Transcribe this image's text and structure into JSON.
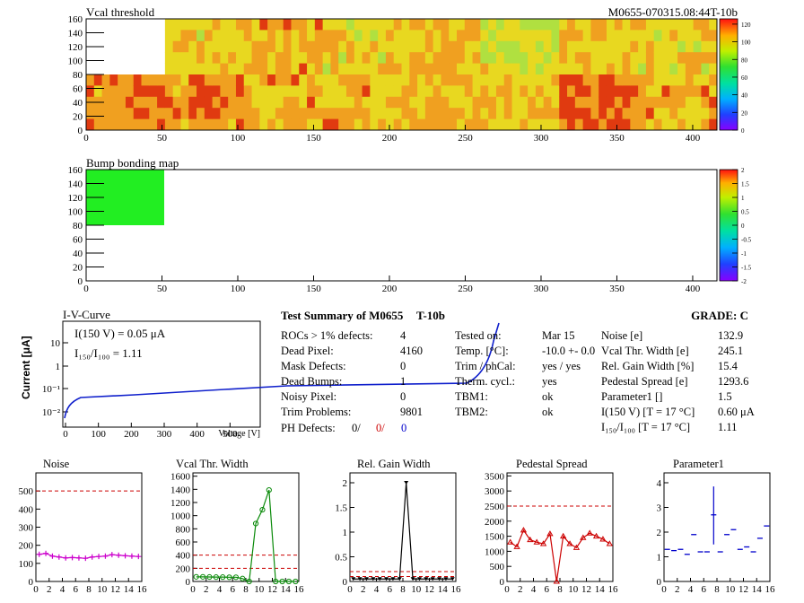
{
  "module_id": "M0655-070315.08:44T-10b",
  "vcal_map": {
    "title": "Vcal threshold",
    "x_ticks": [
      "0",
      "50",
      "100",
      "150",
      "200",
      "250",
      "300",
      "350",
      "400"
    ],
    "y_ticks": [
      "0",
      "20",
      "40",
      "60",
      "80",
      "100",
      "120",
      "140",
      "160"
    ],
    "scale_ticks": [
      "0",
      "20",
      "40",
      "60",
      "80",
      "100",
      "120"
    ],
    "colors": {
      "low": "#e8d820",
      "mid": "#f0a020",
      "high": "#e03a10",
      "cool": "#b0e040"
    }
  },
  "bump_map": {
    "title": "Bump bonding map",
    "x_ticks": [
      "0",
      "50",
      "100",
      "150",
      "200",
      "250",
      "300",
      "350",
      "400"
    ],
    "y_ticks": [
      "0",
      "20",
      "40",
      "60",
      "80",
      "100",
      "120",
      "140",
      "160"
    ],
    "scale_ticks": [
      "-2",
      "-1.5",
      "-1",
      "-0.5",
      "0",
      "0.5",
      "1",
      "1.5",
      "2"
    ],
    "colors": {
      "block": "#22ee22"
    }
  },
  "iv": {
    "title": "I-V-Curve",
    "ylabel": "Current [μA]",
    "xlabel": "Voltage [V]",
    "x_ticks": [
      "0",
      "100",
      "200",
      "300",
      "400",
      "500"
    ],
    "y_ticks": [
      "10",
      "1",
      "10⁻¹",
      "10⁻²"
    ],
    "annot1": "I(150 V) = 0.05 μA",
    "annot2": "I₁₅₀/I₁₀₀ =  1.11",
    "color": "#1020cc"
  },
  "summary": {
    "title": "Test Summary of M0655",
    "sub": "T-10b",
    "grade": "GRADE:  C",
    "left": [
      {
        "label": "ROCs > 1% defects:",
        "value": "4"
      },
      {
        "label": "Dead Pixel:",
        "value": "4160"
      },
      {
        "label": "Mask Defects:",
        "value": "0"
      },
      {
        "label": "Dead Bumps:",
        "value": "1"
      },
      {
        "label": "Noisy Pixel:",
        "value": "0"
      },
      {
        "label": "Trim Problems:",
        "value": "9801"
      }
    ],
    "ph_label": "PH Defects:",
    "ph_v1": "0/",
    "ph_v2": "0/",
    "ph_v3": "0",
    "mid": [
      {
        "label": "Tested on:",
        "value": "Mar 15"
      },
      {
        "label": "Temp. [°C]:",
        "value": "-10.0 +- 0.0"
      },
      {
        "label": "Trim / phCal:",
        "value": "yes / yes"
      },
      {
        "label": "Therm. cycl.:",
        "value": "yes"
      },
      {
        "label": "TBM1:",
        "value": "ok"
      },
      {
        "label": "TBM2:",
        "value": "ok"
      }
    ],
    "right": [
      {
        "label": "Noise [e]",
        "value": "132.9"
      },
      {
        "label": "Vcal Thr. Width [e]",
        "value": "245.1"
      },
      {
        "label": "Rel. Gain Width [%]",
        "value": "15.4"
      },
      {
        "label": "Pedestal Spread [e]",
        "value": "1293.6"
      },
      {
        "label": "Parameter1 []",
        "value": "1.5"
      },
      {
        "label": "I(150 V) [T = 17 °C]",
        "value": "0.60 μA"
      },
      {
        "label": "I₁₅₀/I₁₀₀  [T = 17 °C]",
        "value": "1.11"
      }
    ]
  },
  "chart_data": [
    {
      "type": "line",
      "title": "Noise",
      "x": [
        0,
        1,
        2,
        3,
        4,
        5,
        6,
        7,
        8,
        9,
        10,
        11,
        12,
        13,
        14,
        15
      ],
      "values": [
        150,
        155,
        140,
        135,
        130,
        132,
        130,
        128,
        135,
        138,
        140,
        148,
        145,
        142,
        140,
        138
      ],
      "threshold": 500,
      "ylim": [
        0,
        600
      ],
      "y_ticks": [
        0,
        100,
        200,
        300,
        400,
        500
      ],
      "x_ticks": [
        0,
        2,
        4,
        6,
        8,
        10,
        12,
        14,
        16
      ],
      "color": "#cc00cc"
    },
    {
      "type": "line",
      "title": "Vcal Thr. Width",
      "x": [
        0,
        1,
        2,
        3,
        4,
        5,
        6,
        7,
        8,
        9,
        10,
        11,
        12,
        13,
        14,
        15
      ],
      "values": [
        70,
        70,
        68,
        66,
        66,
        64,
        64,
        44,
        0,
        880,
        1090,
        1390,
        0,
        0,
        0,
        0
      ],
      "thresholds": [
        400,
        200
      ],
      "ylim": [
        0,
        1650
      ],
      "y_ticks": [
        0,
        200,
        400,
        600,
        800,
        1000,
        1200,
        1400,
        1600
      ],
      "x_ticks": [
        0,
        2,
        4,
        6,
        8,
        10,
        12,
        14,
        16
      ],
      "color": "#0a8a0a"
    },
    {
      "type": "line",
      "title": "Rel. Gain Width",
      "x": [
        0,
        1,
        2,
        3,
        4,
        5,
        6,
        7,
        8,
        9,
        10,
        11,
        12,
        13,
        14,
        15
      ],
      "values": [
        0.05,
        0.05,
        0.05,
        0.05,
        0.05,
        0.05,
        0.05,
        0.05,
        2.0,
        0.05,
        0.05,
        0.05,
        0.05,
        0.05,
        0.05,
        0.05
      ],
      "thresholds": [
        0.2,
        0.1
      ],
      "ylim": [
        0,
        2.2
      ],
      "y_ticks": [
        0,
        0.5,
        1,
        1.5,
        2
      ],
      "x_ticks": [
        0,
        2,
        4,
        6,
        8,
        10,
        12,
        14,
        16
      ],
      "color": "#000000"
    },
    {
      "type": "line",
      "title": "Pedestal Spread",
      "x": [
        0,
        1,
        2,
        3,
        4,
        5,
        6,
        7,
        8,
        9,
        10,
        11,
        12,
        13,
        14,
        15
      ],
      "values": [
        1300,
        1150,
        1700,
        1380,
        1300,
        1250,
        1580,
        0,
        1500,
        1250,
        1120,
        1450,
        1600,
        1500,
        1400,
        1250
      ],
      "threshold": 2500,
      "ylim": [
        0,
        3600
      ],
      "y_ticks": [
        0,
        500,
        1000,
        1500,
        2000,
        2500,
        3000,
        3500
      ],
      "x_ticks": [
        0,
        2,
        4,
        6,
        8,
        10,
        12,
        14,
        16
      ],
      "color": "#cc0000"
    },
    {
      "type": "scatter",
      "title": "Parameter1",
      "x": [
        0,
        1,
        2,
        3,
        4,
        5,
        6,
        7,
        8,
        9,
        10,
        11,
        12,
        13,
        14,
        15
      ],
      "values": [
        1.3,
        1.25,
        1.3,
        1.1,
        1.9,
        1.2,
        1.2,
        2.7,
        1.2,
        1.9,
        2.1,
        1.3,
        1.4,
        1.2,
        1.75,
        2.25
      ],
      "ylim": [
        0,
        4.4
      ],
      "y_ticks": [
        0,
        1,
        2,
        3,
        4
      ],
      "x_ticks": [
        0,
        2,
        4,
        6,
        8,
        10,
        12,
        14,
        16
      ],
      "color": "#0000cc"
    }
  ]
}
